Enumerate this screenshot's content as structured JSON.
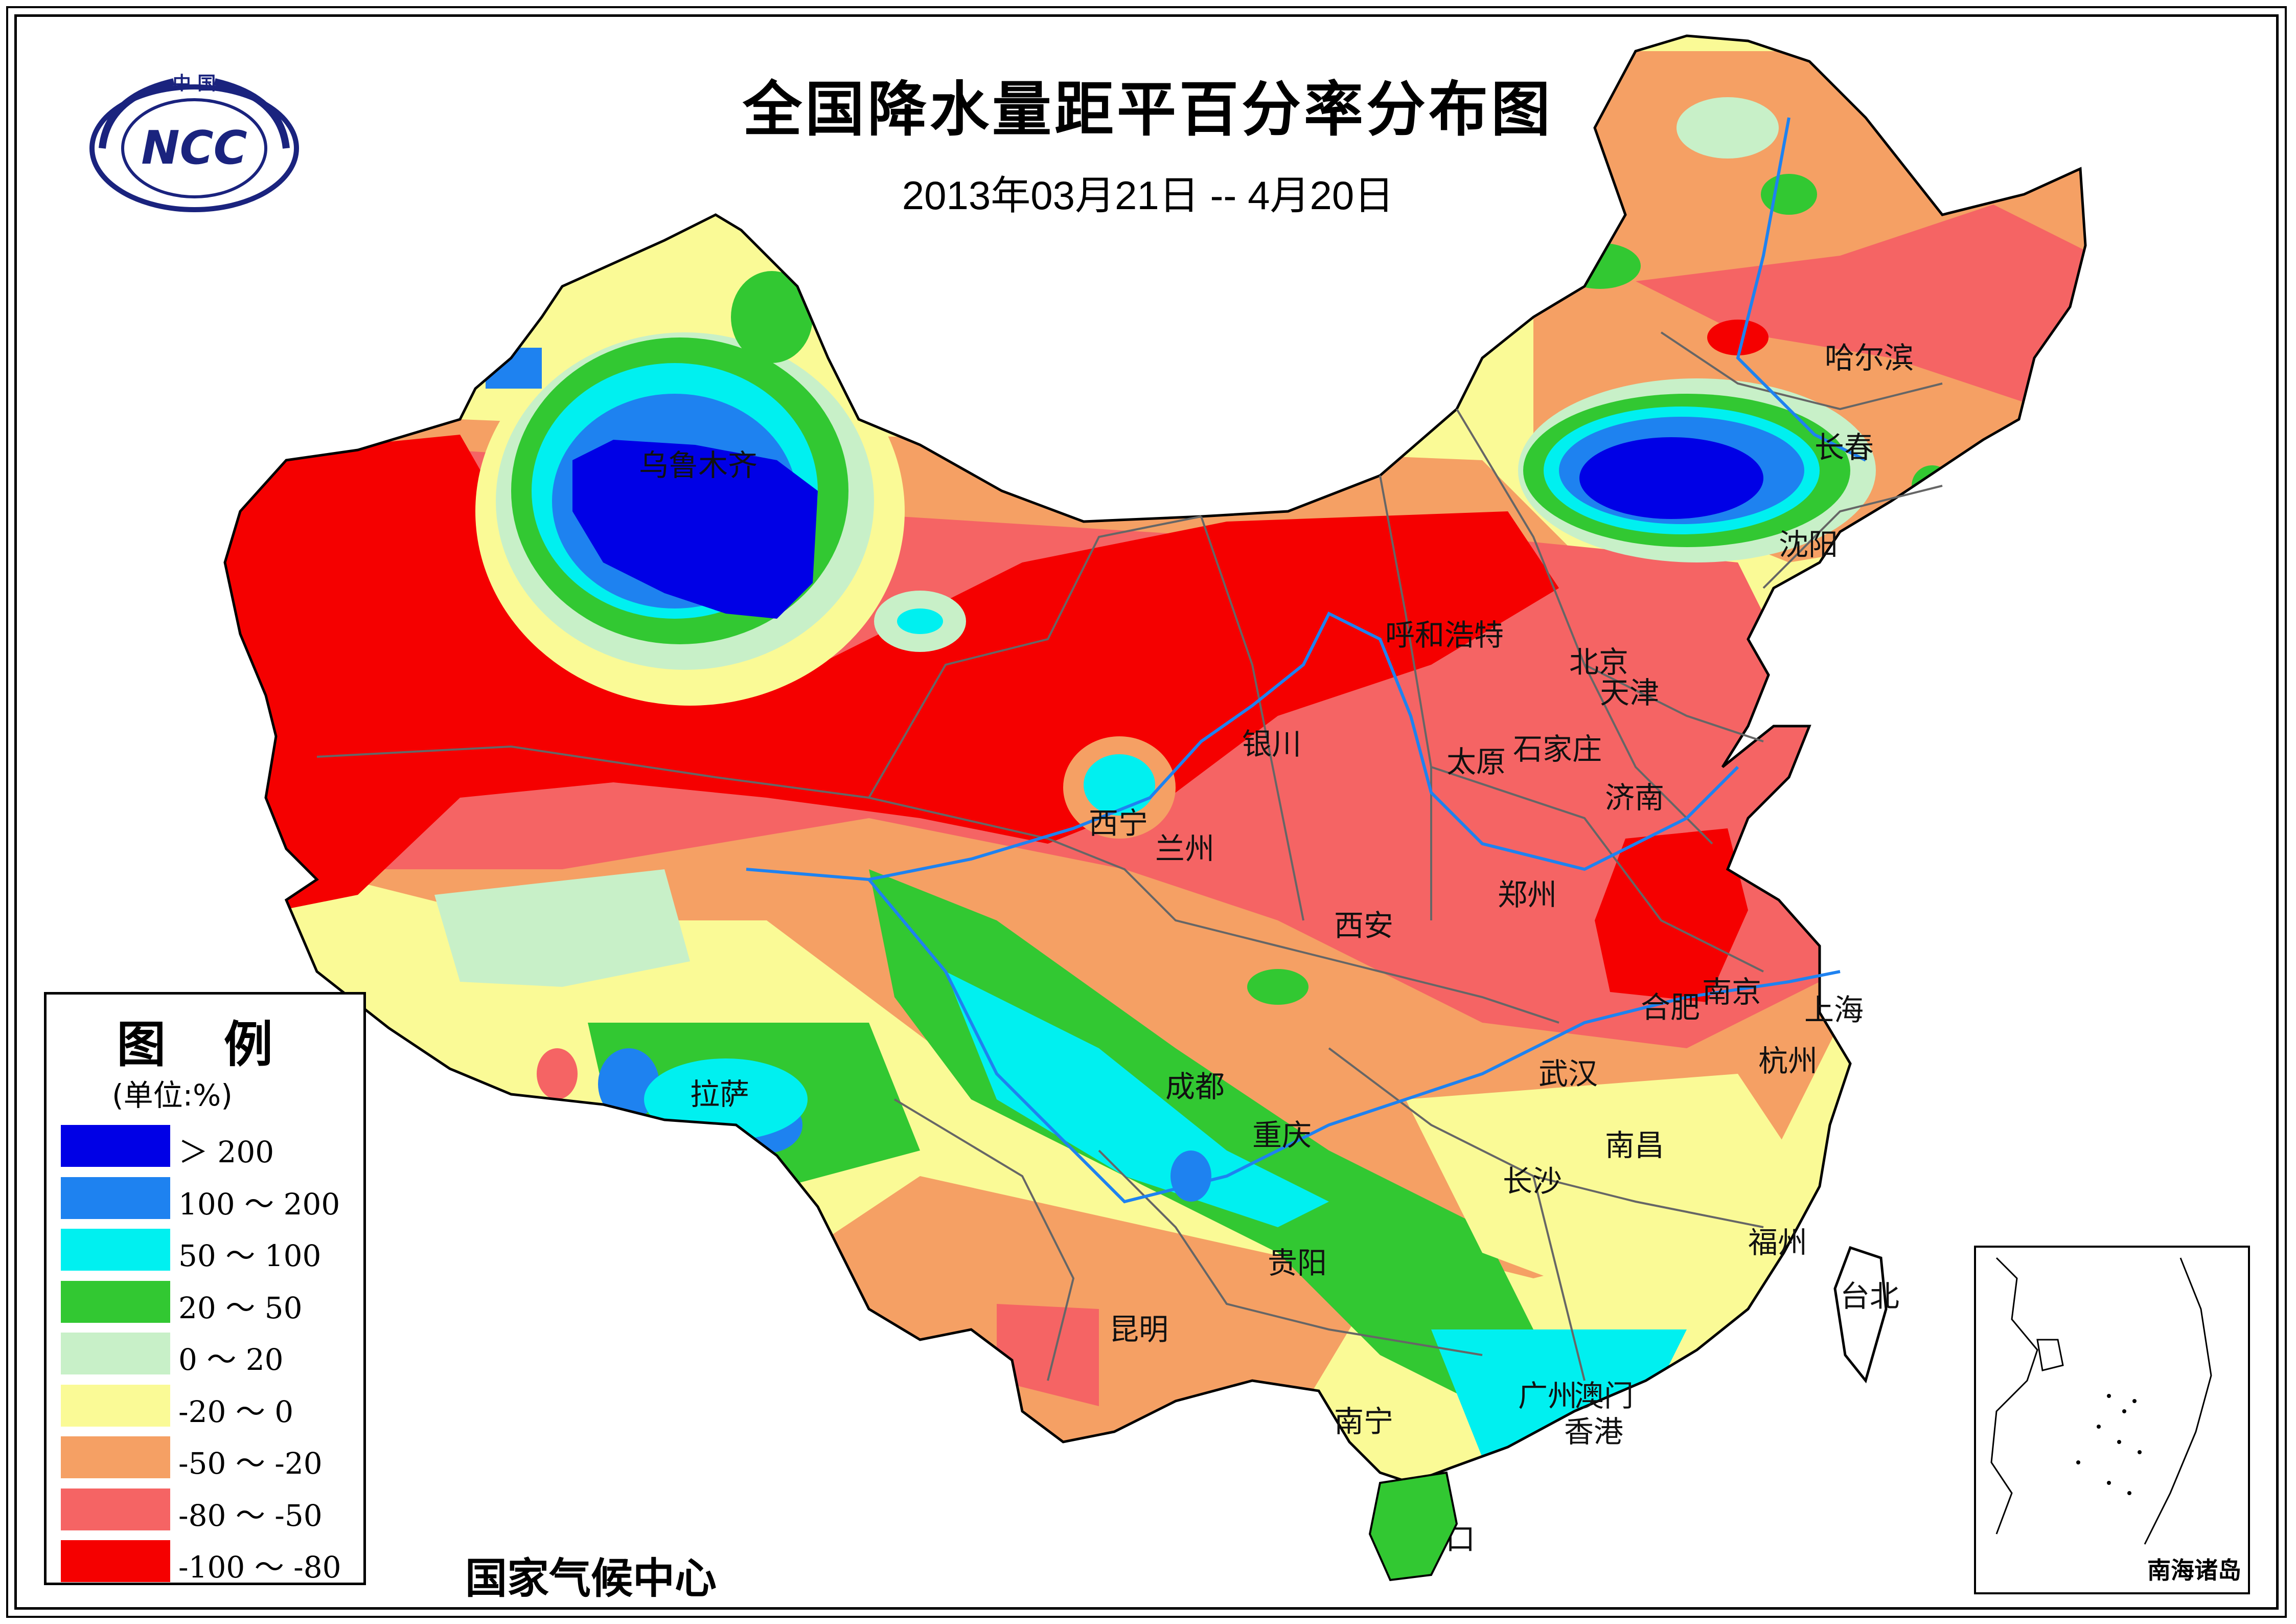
{
  "title": "全国降水量距平百分率分布图",
  "subtitle": "2013年03月21日 -- 4月20日",
  "organization": "国家气候中心",
  "logo": {
    "top_text": "中 国",
    "center_text": "NCC"
  },
  "legend": {
    "title": "图 例",
    "unit": "(单位:%)",
    "items": [
      {
        "label": "＞ 200",
        "color": "#0000e6"
      },
      {
        "label": "100 ～ 200",
        "color": "#1e82f0"
      },
      {
        "label": "50 ～ 100",
        "color": "#00f0f0"
      },
      {
        "label": "20 ～ 50",
        "color": "#32c832"
      },
      {
        "label": "0 ～ 20",
        "color": "#c8f0c8"
      },
      {
        "label": "-20 ～ 0",
        "color": "#fafa96"
      },
      {
        "label": "-50 ～ -20",
        "color": "#f5a064"
      },
      {
        "label": "-80 ～ -50",
        "color": "#f56464"
      },
      {
        "label": "-100 ～ -80",
        "color": "#f50000"
      }
    ]
  },
  "cities": [
    "乌鲁木齐",
    "哈尔滨",
    "长春",
    "沈阳",
    "呼和浩特",
    "北京",
    "天津",
    "银川",
    "太原",
    "石家庄",
    "济南",
    "西宁",
    "兰州",
    "郑州",
    "西安",
    "合肥",
    "南京",
    "上海",
    "拉萨",
    "成都",
    "武汉",
    "杭州",
    "重庆",
    "南昌",
    "长沙",
    "福州",
    "贵阳",
    "台北",
    "昆明",
    "广州",
    "澳门",
    "香港",
    "南宁",
    "海口"
  ],
  "inset_label": "南海诸岛"
}
